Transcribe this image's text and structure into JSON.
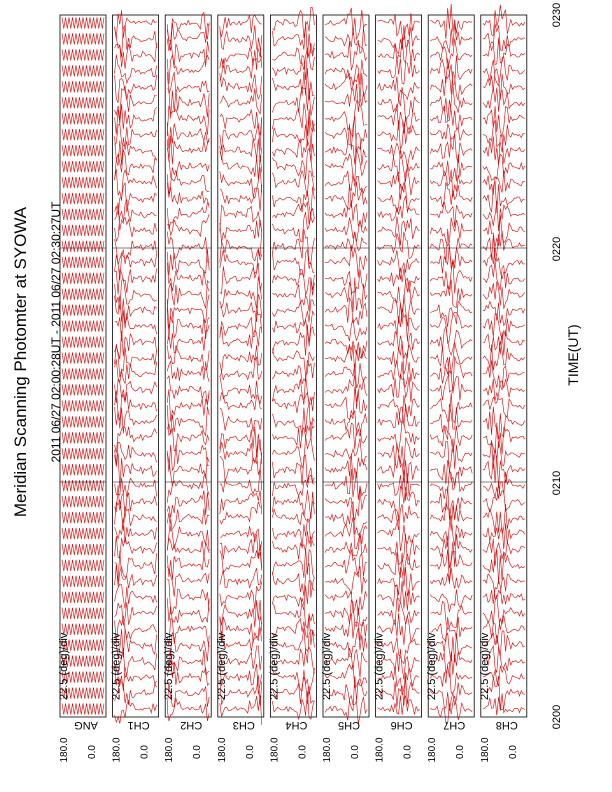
{
  "chart_data": {
    "type": "line",
    "title": "Meridian Scanning Photomter at SYOWA",
    "subtitle": "2011 06/27 02:00:28UT - 2011 06/27 02:30:27UT",
    "xlabel": "TIME(UT)",
    "x_ticks": [
      "0200",
      "0210",
      "0220",
      "0230"
    ],
    "panels": [
      {
        "name": "ANG",
        "scale": "22.5 (deg)/div",
        "ymax_label": "180.0",
        "ymin_label": "0.0"
      },
      {
        "name": "CH1",
        "scale": "22.5 (deg)/div",
        "ymax_label": "180.0",
        "ymin_label": "0.0"
      },
      {
        "name": "CH2",
        "scale": "22.5 (deg)/div",
        "ymax_label": "180.0",
        "ymin_label": "0.0"
      },
      {
        "name": "CH3",
        "scale": "22.5 (deg)/div",
        "ymax_label": "180.0",
        "ymin_label": "0.0"
      },
      {
        "name": "CH4",
        "scale": "22.5 (deg)/div",
        "ymax_label": "180.0",
        "ymin_label": "0.0"
      },
      {
        "name": "CH5",
        "scale": "22.5 (deg)/div",
        "ymax_label": "180.0",
        "ymin_label": "0.0"
      },
      {
        "name": "CH6",
        "scale": "22.5 (deg)/div",
        "ymax_label": "180.0",
        "ymin_label": "0.0"
      },
      {
        "name": "CH7",
        "scale": "22.5 (deg)/div",
        "ymax_label": "180.0",
        "ymin_label": "0.0"
      },
      {
        "name": "CH8",
        "scale": "22.5 (deg)/div",
        "ymax_label": "180.0",
        "ymin_label": "0.0"
      }
    ],
    "colors": {
      "trace": "#dd0000",
      "axis": "#000000"
    }
  }
}
